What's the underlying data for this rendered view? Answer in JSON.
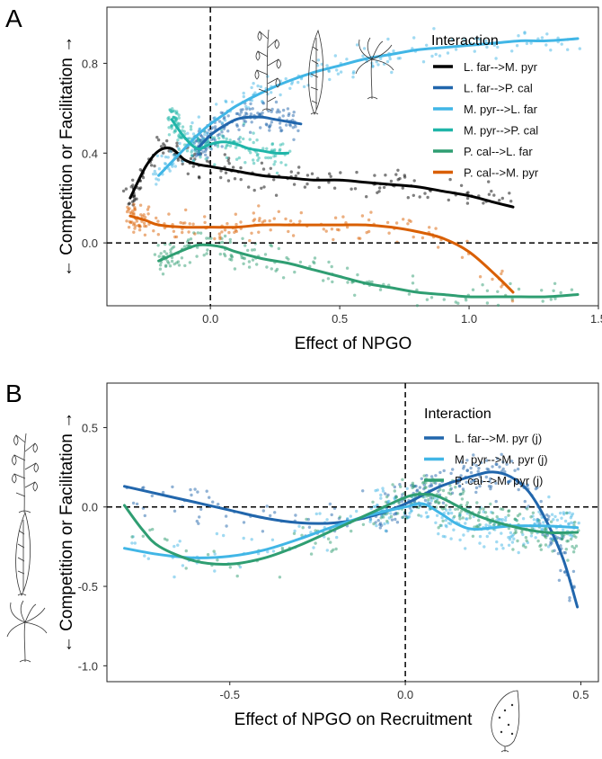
{
  "chart_data": [
    {
      "panel_label": "A",
      "type": "line",
      "xlabel": "Effect of NPGO",
      "ylabel": "← Competition or Facilitation →",
      "xlim": [
        -0.4,
        1.5
      ],
      "ylim": [
        -0.28,
        1.05
      ],
      "xticks": [
        {
          "v": 0.0,
          "label": "0.0"
        },
        {
          "v": 0.5,
          "label": "0.5"
        },
        {
          "v": 1.0,
          "label": "1.0"
        },
        {
          "v": 1.5,
          "label": "1.5"
        }
      ],
      "yticks": [
        {
          "v": 0.0,
          "label": "0.0"
        },
        {
          "v": 0.4,
          "label": "0.4"
        },
        {
          "v": 0.8,
          "label": "0.8"
        }
      ],
      "grid": false,
      "reference_lines": {
        "x": 0,
        "y": 0
      },
      "legend": {
        "title": "Interaction",
        "position": "top-right"
      },
      "series": [
        {
          "name": "L. far-->M. pyr",
          "color": "#000000",
          "x": [
            -0.31,
            -0.25,
            -0.2,
            -0.15,
            -0.1,
            -0.05,
            0.0,
            0.05,
            0.1,
            0.2,
            0.3,
            0.4,
            0.5,
            0.6,
            0.7,
            0.8,
            0.9,
            1.0,
            1.1,
            1.17
          ],
          "y": [
            0.2,
            0.34,
            0.41,
            0.42,
            0.37,
            0.35,
            0.34,
            0.33,
            0.32,
            0.3,
            0.29,
            0.28,
            0.28,
            0.27,
            0.26,
            0.25,
            0.23,
            0.21,
            0.18,
            0.16
          ]
        },
        {
          "name": "L. far-->P. cal",
          "color": "#2166ac",
          "x": [
            -0.05,
            0.0,
            0.05,
            0.1,
            0.15,
            0.2,
            0.25,
            0.3,
            0.35
          ],
          "y": [
            0.42,
            0.48,
            0.52,
            0.55,
            0.56,
            0.56,
            0.55,
            0.54,
            0.53
          ]
        },
        {
          "name": "M. pyr-->L. far",
          "color": "#41b6e6",
          "x": [
            -0.2,
            -0.15,
            -0.1,
            -0.05,
            0.0,
            0.05,
            0.1,
            0.2,
            0.3,
            0.4,
            0.5,
            0.6,
            0.7,
            0.8,
            0.9,
            1.0,
            1.1,
            1.2,
            1.3,
            1.42
          ],
          "y": [
            0.3,
            0.36,
            0.42,
            0.48,
            0.53,
            0.57,
            0.61,
            0.67,
            0.72,
            0.76,
            0.79,
            0.82,
            0.84,
            0.86,
            0.87,
            0.88,
            0.89,
            0.9,
            0.9,
            0.91
          ]
        },
        {
          "name": "M. pyr-->P. cal",
          "color": "#1fb5a8",
          "x": [
            -0.15,
            -0.1,
            -0.05,
            0.0,
            0.05,
            0.1,
            0.15,
            0.2,
            0.25,
            0.3
          ],
          "y": [
            0.55,
            0.47,
            0.42,
            0.44,
            0.45,
            0.44,
            0.42,
            0.41,
            0.4,
            0.4
          ]
        },
        {
          "name": "P. cal-->L. far",
          "color": "#2f9e72",
          "x": [
            -0.2,
            -0.1,
            -0.05,
            0.0,
            0.05,
            0.1,
            0.2,
            0.3,
            0.4,
            0.5,
            0.6,
            0.7,
            0.8,
            0.9,
            1.0,
            1.1,
            1.2,
            1.3,
            1.42
          ],
          "y": [
            -0.08,
            -0.03,
            -0.01,
            -0.01,
            -0.02,
            -0.04,
            -0.07,
            -0.09,
            -0.12,
            -0.15,
            -0.18,
            -0.2,
            -0.22,
            -0.23,
            -0.24,
            -0.24,
            -0.24,
            -0.24,
            -0.23
          ]
        },
        {
          "name": "P. cal-->M. pyr",
          "color": "#d95f02",
          "x": [
            -0.31,
            -0.25,
            -0.2,
            -0.1,
            0.0,
            0.1,
            0.2,
            0.3,
            0.4,
            0.5,
            0.6,
            0.7,
            0.8,
            0.9,
            1.0,
            1.1,
            1.17
          ],
          "y": [
            0.12,
            0.1,
            0.08,
            0.07,
            0.07,
            0.07,
            0.08,
            0.08,
            0.08,
            0.08,
            0.08,
            0.07,
            0.05,
            0.02,
            -0.04,
            -0.14,
            -0.22
          ]
        }
      ]
    },
    {
      "panel_label": "B",
      "type": "line",
      "xlabel": "Effect of NPGO on Recruitment",
      "ylabel": "← Competition or Facilitation →",
      "xlim": [
        -0.85,
        0.55
      ],
      "ylim": [
        -1.1,
        0.78
      ],
      "xticks": [
        {
          "v": -0.5,
          "label": "-0.5"
        },
        {
          "v": 0.0,
          "label": "0.0"
        },
        {
          "v": 0.5,
          "label": "0.5"
        }
      ],
      "yticks": [
        {
          "v": -1.0,
          "label": "-1.0"
        },
        {
          "v": -0.5,
          "label": "-0.5"
        },
        {
          "v": 0.0,
          "label": "0.0"
        },
        {
          "v": 0.5,
          "label": "0.5"
        }
      ],
      "grid": false,
      "reference_lines": {
        "x": 0,
        "y": 0
      },
      "legend": {
        "title": "Interaction",
        "position": "top-right"
      },
      "series": [
        {
          "name": "L. far-->M. pyr (j)",
          "color": "#2166ac",
          "x": [
            -0.8,
            -0.7,
            -0.6,
            -0.5,
            -0.4,
            -0.3,
            -0.2,
            -0.1,
            0.0,
            0.1,
            0.2,
            0.25,
            0.3,
            0.35,
            0.4,
            0.45,
            0.49
          ],
          "y": [
            0.13,
            0.08,
            0.03,
            -0.02,
            -0.07,
            -0.1,
            -0.1,
            -0.06,
            0.02,
            0.13,
            0.2,
            0.22,
            0.19,
            0.1,
            -0.08,
            -0.33,
            -0.63
          ]
        },
        {
          "name": "M. pyr-->M. pyr (j)",
          "color": "#41b6e6",
          "x": [
            -0.8,
            -0.7,
            -0.6,
            -0.5,
            -0.4,
            -0.3,
            -0.2,
            -0.1,
            0.0,
            0.05,
            0.1,
            0.15,
            0.2,
            0.3,
            0.4,
            0.49
          ],
          "y": [
            -0.26,
            -0.3,
            -0.32,
            -0.31,
            -0.27,
            -0.2,
            -0.12,
            -0.05,
            0.0,
            0.02,
            -0.04,
            -0.11,
            -0.14,
            -0.12,
            -0.12,
            -0.13
          ]
        },
        {
          "name": "P. cal-->M. pyr (j)",
          "color": "#2f9e72",
          "x": [
            -0.8,
            -0.75,
            -0.7,
            -0.6,
            -0.5,
            -0.4,
            -0.3,
            -0.2,
            -0.1,
            0.0,
            0.05,
            0.1,
            0.2,
            0.3,
            0.4,
            0.49
          ],
          "y": [
            0.01,
            -0.14,
            -0.25,
            -0.34,
            -0.36,
            -0.32,
            -0.24,
            -0.14,
            -0.04,
            0.06,
            0.08,
            0.06,
            -0.05,
            -0.12,
            -0.16,
            -0.16
          ]
        }
      ]
    }
  ],
  "scatter_colors": {
    "A": [
      "#000000",
      "#2166ac",
      "#41b6e6",
      "#1fb5a8",
      "#2f9e72",
      "#d95f02"
    ],
    "B": [
      "#2166ac",
      "#41b6e6",
      "#2f9e72"
    ]
  },
  "icons": [
    "giant-kelp-sketch-icon",
    "seaweed-blade-sketch-icon",
    "palm-kelp-sketch-icon",
    "kelp-spore-sketch-icon"
  ]
}
